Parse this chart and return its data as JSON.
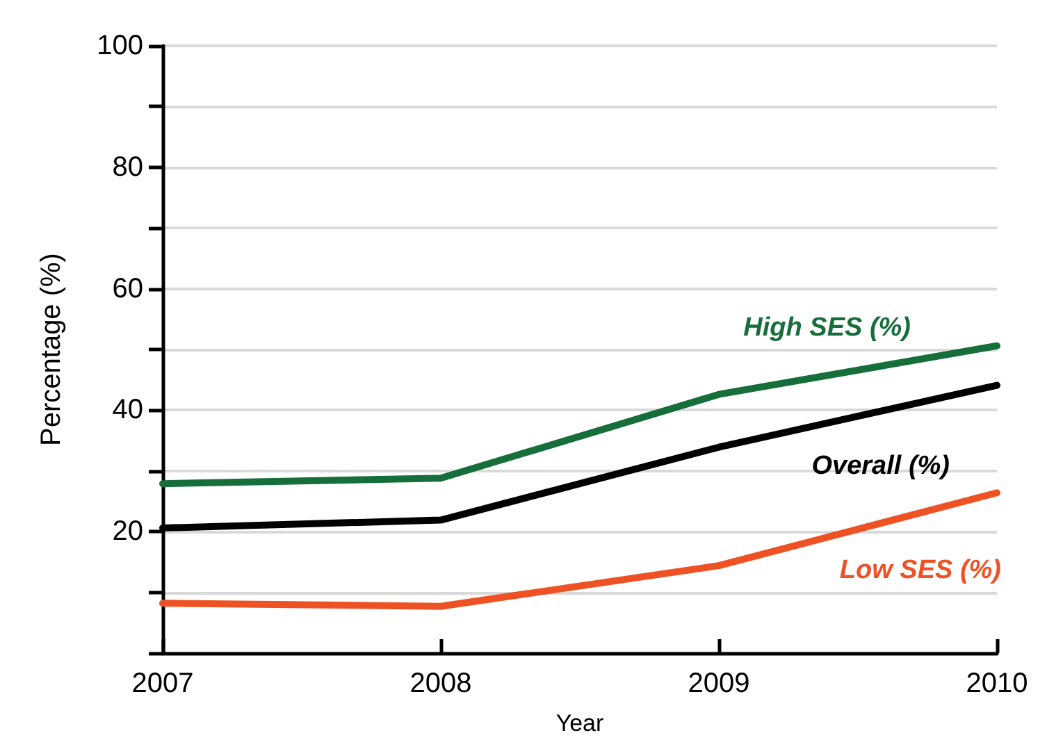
{
  "chart_data": {
    "type": "line",
    "xlabel": "Year",
    "ylabel": "Percentage (%)",
    "x": [
      2007,
      2008,
      2009,
      2010
    ],
    "series": [
      {
        "name": "High SES (%)",
        "color": "#166e3a",
        "values": [
          27.9,
          28.8,
          42.6,
          50.6
        ]
      },
      {
        "name": "Overall (%)",
        "color": "#000000",
        "values": [
          20.6,
          21.9,
          33.9,
          44.1
        ]
      },
      {
        "name": "Low SES (%)",
        "color": "#ee5224",
        "values": [
          8.2,
          7.7,
          14.4,
          26.4
        ]
      }
    ],
    "xlim": [
      2007,
      2010
    ],
    "xticks": [
      2007,
      2008,
      2009,
      2010
    ],
    "ylim": [
      0,
      100
    ],
    "yticks": [
      {
        "value": 0,
        "label": null
      },
      {
        "value": 10,
        "label": null
      },
      20,
      {
        "value": 30,
        "label": null
      },
      40,
      {
        "value": 50,
        "label": null
      },
      60,
      {
        "value": 70,
        "label": null
      },
      80,
      {
        "value": 90,
        "label": null
      },
      100
    ],
    "grid": "y",
    "marker": "none",
    "line_style": "solid",
    "legend": false
  }
}
